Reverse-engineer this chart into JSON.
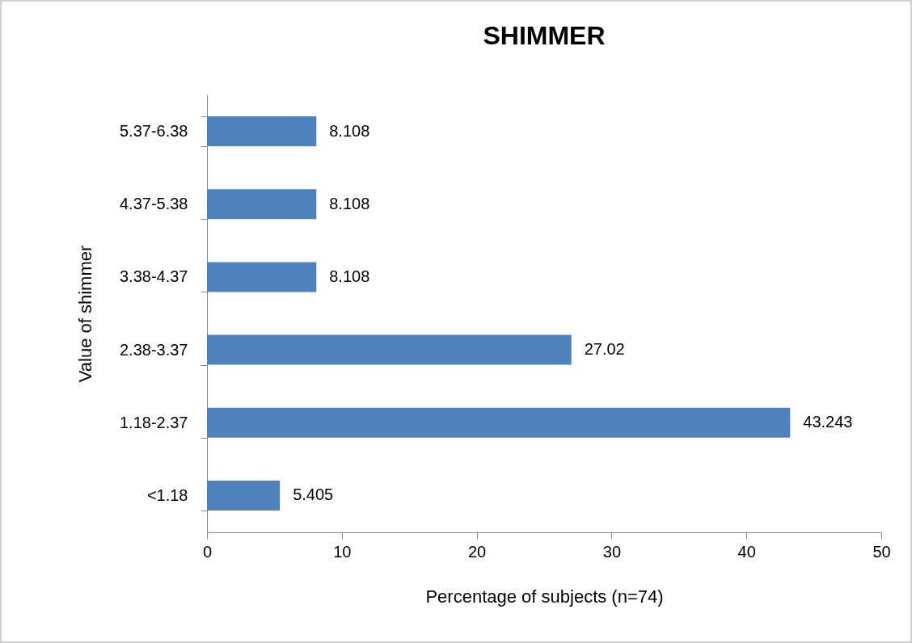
{
  "chart_data": {
    "type": "bar",
    "orientation": "horizontal",
    "title": "SHIMMER",
    "xlabel": "Percentage of subjects (n=74)",
    "ylabel": "Value of shimmer",
    "categories": [
      "5.37-6.38",
      "4.37-5.38",
      "3.38-4.37",
      "2.38-3.37",
      "1.18-2.37",
      "<1.18"
    ],
    "values": [
      8.108,
      8.108,
      8.108,
      27.02,
      43.243,
      5.405
    ],
    "color": "#4f81bd",
    "xlim": [
      0,
      50
    ],
    "xticks": [
      0,
      10,
      20,
      30,
      40,
      50
    ],
    "grid": false,
    "data_labels": true
  }
}
